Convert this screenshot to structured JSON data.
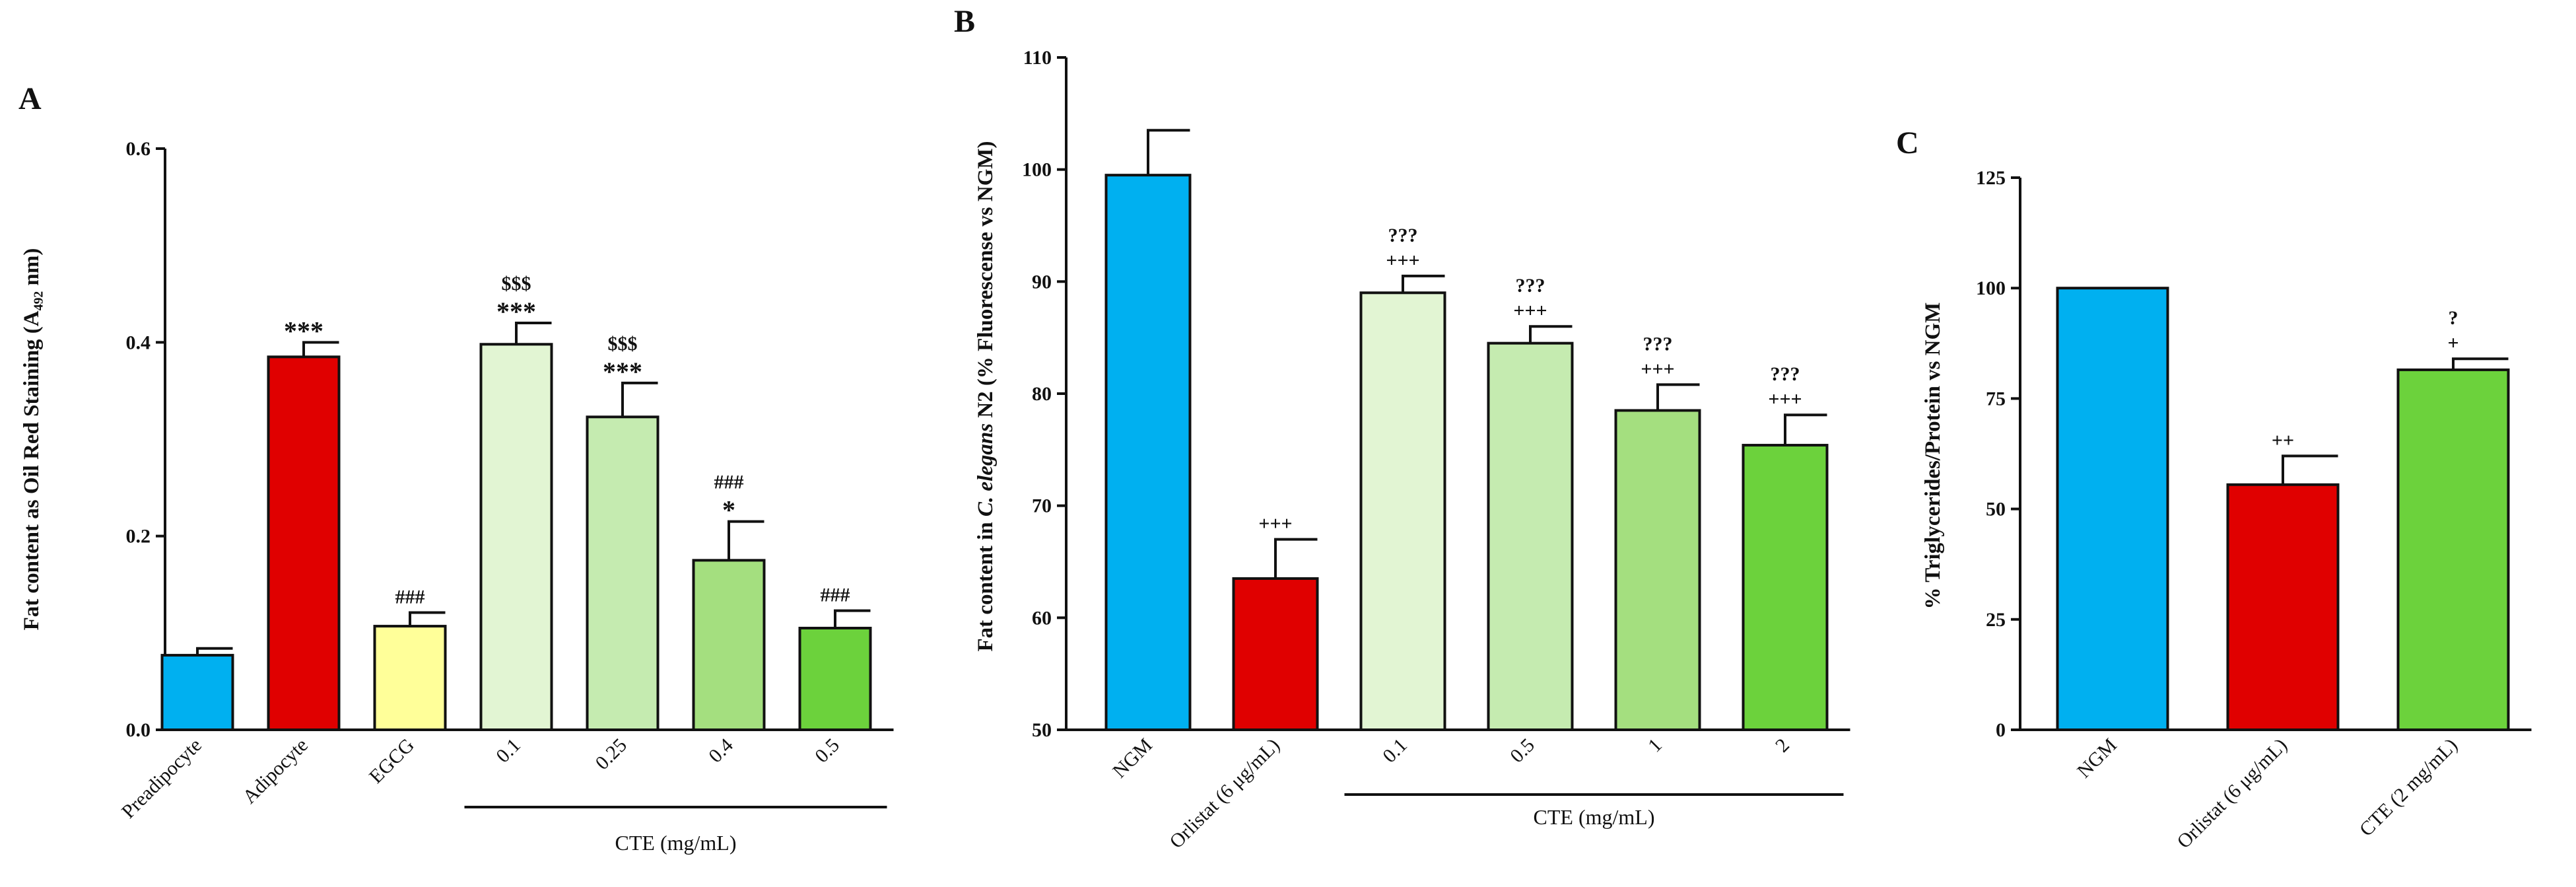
{
  "chart_data": [
    {
      "panel": "A",
      "type": "bar",
      "ylabel": "Fat content as Oil Red Staining (A₄₉₂ nm)",
      "ylim": [
        0,
        0.6
      ],
      "yticks": [
        "0.0",
        "0.2",
        "0.4",
        "0.6"
      ],
      "ytick_values": [
        0,
        0.2,
        0.4,
        0.6
      ],
      "categories": [
        "Preadipocyte",
        "Adipocyte",
        "EGCG",
        "0.1",
        "0.25",
        "0.4",
        "0.5"
      ],
      "values": [
        0.077,
        0.385,
        0.107,
        0.398,
        0.323,
        0.175,
        0.105
      ],
      "errors": [
        0.007,
        0.015,
        0.014,
        0.022,
        0.035,
        0.04,
        0.018
      ],
      "colors": [
        "#00b0f0",
        "#e00000",
        "#ffff99",
        "#e2f5d3",
        "#c5ebb0",
        "#a4df7f",
        "#6cd23c"
      ],
      "annotations": [
        [],
        [
          "***"
        ],
        [
          "###"
        ],
        [
          "$$$",
          "***"
        ],
        [
          "$$$",
          "***"
        ],
        [
          "###",
          "*"
        ],
        [
          "###"
        ]
      ],
      "group_label": "CTE (mg/mL)",
      "group_range": [
        3,
        6
      ]
    },
    {
      "panel": "B",
      "type": "bar",
      "ylabel_pre": "Fat content in ",
      "ylabel_italic": "C. elegans",
      "ylabel_post": " N2 (% Fluorescense vs NGM)",
      "ylim": [
        50,
        110
      ],
      "yticks": [
        "50",
        "60",
        "70",
        "80",
        "90",
        "100",
        "110"
      ],
      "ytick_values": [
        50,
        60,
        70,
        80,
        90,
        100,
        110
      ],
      "categories": [
        "NGM",
        "Orlistat (6 μg/mL)",
        "0.1",
        "0.5",
        "1",
        "2"
      ],
      "values": [
        99.5,
        63.5,
        89.0,
        84.5,
        78.5,
        75.4
      ],
      "errors": [
        4.0,
        3.5,
        1.5,
        1.5,
        2.3,
        2.7
      ],
      "colors": [
        "#00b0f0",
        "#e00000",
        "#e2f5d3",
        "#c5ebb0",
        "#a4df7f",
        "#6cd23c"
      ],
      "annotations": [
        [],
        [
          "+++"
        ],
        [
          "???",
          "+++"
        ],
        [
          "???",
          "+++"
        ],
        [
          "???",
          "+++"
        ],
        [
          "???",
          "+++"
        ]
      ],
      "group_label": "CTE (mg/mL)",
      "group_range": [
        2,
        5
      ]
    },
    {
      "panel": "C",
      "type": "bar",
      "ylabel": "% Triglycerides/Protein vs NGM",
      "ylim": [
        0,
        125
      ],
      "yticks": [
        "0",
        "25",
        "50",
        "75",
        "100",
        "125"
      ],
      "ytick_values": [
        0,
        25,
        50,
        75,
        100,
        125
      ],
      "categories": [
        "NGM",
        "Orlistat (6 μg/mL)",
        "CTE (2 mg/mL)"
      ],
      "values": [
        100,
        55.5,
        81.5
      ],
      "errors": [
        0,
        6.5,
        2.5
      ],
      "colors": [
        "#00b0f0",
        "#e00000",
        "#6cd23c"
      ],
      "annotations": [
        [],
        [
          "++"
        ],
        [
          "?",
          "+"
        ]
      ]
    }
  ]
}
